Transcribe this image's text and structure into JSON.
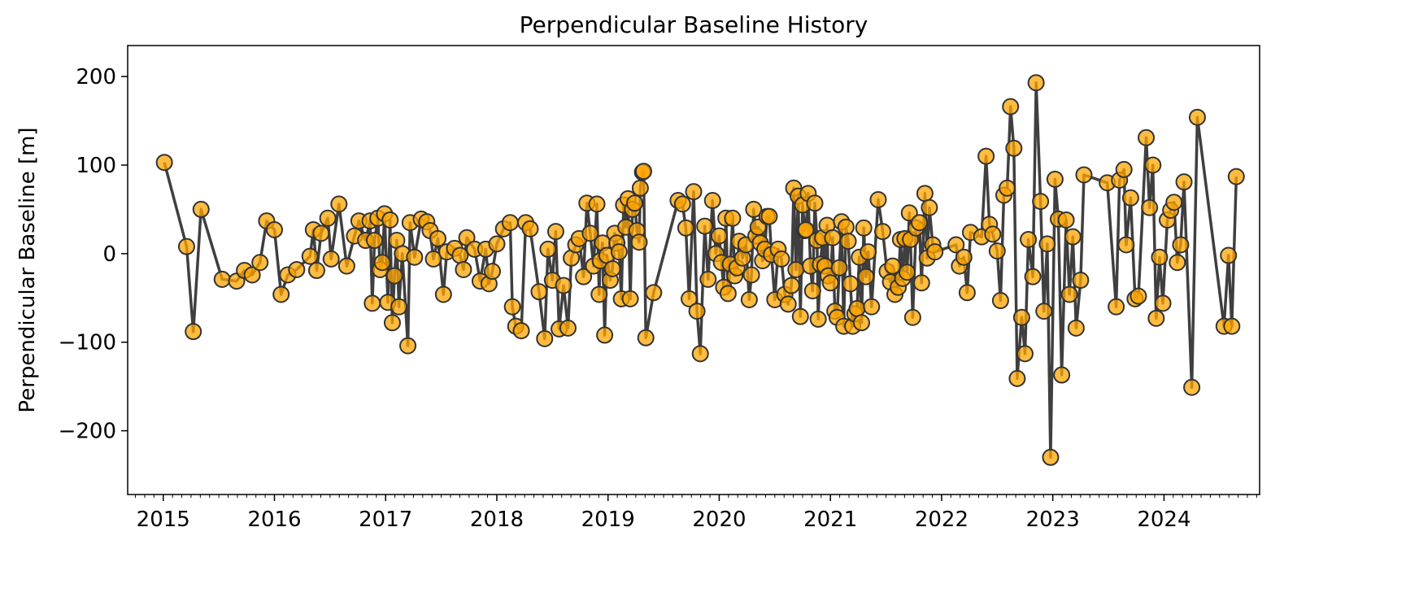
{
  "chart_data": {
    "type": "line",
    "title": "Perpendicular Baseline History",
    "ylabel": "Perpendicular Baseline [m]",
    "line_color": "#3f3f3f",
    "marker_color": "#ffa500",
    "marker_edge_color": "#333333",
    "xlim": [
      2014.68,
      2024.86
    ],
    "ylim": [
      -272,
      235
    ],
    "xticks": [
      2015,
      2016,
      2017,
      2018,
      2019,
      2020,
      2021,
      2022,
      2023,
      2024
    ],
    "yticks": [
      {
        "value": -200,
        "label": "−200"
      },
      {
        "value": -100,
        "label": "−100"
      },
      0,
      100,
      200
    ],
    "x": [
      2015.01,
      2015.21,
      2015.27,
      2015.34,
      2015.53,
      2015.66,
      2015.73,
      2015.8,
      2015.87,
      2015.93,
      2016.0,
      2016.06,
      2016.12,
      2016.2,
      2016.32,
      2016.35,
      2016.38,
      2016.42,
      2016.48,
      2016.51,
      2016.58,
      2016.65,
      2016.72,
      2016.76,
      2016.82,
      2016.86,
      2016.88,
      2016.9,
      2016.93,
      2016.95,
      2016.97,
      2016.99,
      2017.02,
      2017.04,
      2017.06,
      2017.08,
      2017.1,
      2017.12,
      2017.15,
      2017.2,
      2017.22,
      2017.26,
      2017.32,
      2017.37,
      2017.4,
      2017.43,
      2017.47,
      2017.52,
      2017.55,
      2017.62,
      2017.67,
      2017.7,
      2017.73,
      2017.8,
      2017.85,
      2017.9,
      2017.93,
      2017.96,
      2018.0,
      2018.06,
      2018.12,
      2018.14,
      2018.17,
      2018.22,
      2018.26,
      2018.3,
      2018.38,
      2018.43,
      2018.46,
      2018.5,
      2018.53,
      2018.56,
      2018.6,
      2018.64,
      2018.67,
      2018.71,
      2018.74,
      2018.78,
      2018.81,
      2018.84,
      2018.87,
      2018.9,
      2018.92,
      2018.93,
      2018.95,
      2018.97,
      2018.99,
      2019.02,
      2019.04,
      2019.06,
      2019.08,
      2019.1,
      2019.12,
      2019.14,
      2019.16,
      2019.18,
      2019.2,
      2019.22,
      2019.24,
      2019.26,
      2019.28,
      2019.29,
      2019.31,
      2019.32,
      2019.34,
      2019.41,
      2019.63,
      2019.67,
      2019.7,
      2019.73,
      2019.77,
      2019.8,
      2019.83,
      2019.87,
      2019.9,
      2019.94,
      2019.97,
      2020.0,
      2020.02,
      2020.04,
      2020.06,
      2020.08,
      2020.1,
      2020.12,
      2020.14,
      2020.16,
      2020.18,
      2020.21,
      2020.24,
      2020.27,
      2020.29,
      2020.31,
      2020.33,
      2020.35,
      2020.37,
      2020.39,
      2020.41,
      2020.43,
      2020.45,
      2020.47,
      2020.5,
      2020.53,
      2020.56,
      2020.59,
      2020.62,
      2020.65,
      2020.67,
      2020.69,
      2020.71,
      2020.73,
      2020.75,
      2020.77,
      2020.78,
      2020.8,
      2020.82,
      2020.84,
      2020.86,
      2020.88,
      2020.89,
      2020.91,
      2020.93,
      2020.95,
      2020.97,
      2020.98,
      2021.0,
      2021.02,
      2021.04,
      2021.06,
      2021.08,
      2021.1,
      2021.12,
      2021.14,
      2021.16,
      2021.18,
      2021.2,
      2021.22,
      2021.24,
      2021.26,
      2021.28,
      2021.3,
      2021.32,
      2021.34,
      2021.37,
      2021.43,
      2021.47,
      2021.51,
      2021.54,
      2021.56,
      2021.58,
      2021.61,
      2021.63,
      2021.65,
      2021.67,
      2021.69,
      2021.71,
      2021.72,
      2021.74,
      2021.77,
      2021.8,
      2021.82,
      2021.85,
      2021.87,
      2021.89,
      2021.92,
      2021.94,
      2022.13,
      2022.16,
      2022.2,
      2022.23,
      2022.26,
      2022.36,
      2022.4,
      2022.43,
      2022.46,
      2022.5,
      2022.53,
      2022.56,
      2022.59,
      2022.62,
      2022.65,
      2022.68,
      2022.72,
      2022.75,
      2022.78,
      2022.82,
      2022.85,
      2022.89,
      2022.92,
      2022.95,
      2022.98,
      2023.02,
      2023.05,
      2023.08,
      2023.12,
      2023.15,
      2023.18,
      2023.21,
      2023.25,
      2023.28,
      2023.49,
      2023.57,
      2023.6,
      2023.64,
      2023.66,
      2023.7,
      2023.74,
      2023.77,
      2023.84,
      2023.87,
      2023.9,
      2023.93,
      2023.96,
      2023.99,
      2024.03,
      2024.06,
      2024.09,
      2024.12,
      2024.15,
      2024.18,
      2024.25,
      2024.3,
      2024.54,
      2024.58,
      2024.61,
      2024.65
    ],
    "values": [
      103,
      8,
      -88,
      50,
      -29,
      -31,
      -19,
      -24,
      -10,
      37,
      27,
      -46,
      -24,
      -18,
      -3,
      27,
      -19,
      23,
      40,
      -6,
      56,
      -14,
      20,
      37,
      15,
      37,
      -56,
      15,
      40,
      -18,
      -10,
      45,
      -55,
      38,
      -78,
      -25,
      15,
      -60,
      0,
      -104,
      35,
      -4,
      39,
      36,
      26,
      -6,
      17,
      -46,
      2,
      6,
      -2,
      -18,
      18,
      5,
      -31,
      5,
      -34,
      -20,
      11,
      28,
      35,
      -60,
      -82,
      -87,
      35,
      28,
      -43,
      -96,
      5,
      -30,
      25,
      -85,
      -36,
      -84,
      -5,
      10,
      17,
      -26,
      57,
      23,
      -14,
      56,
      -46,
      -8,
      12,
      -92,
      -2,
      -30,
      -17,
      23,
      12,
      2,
      -51,
      55,
      30,
      62,
      -51,
      50,
      57,
      26,
      13,
      74,
      92,
      93,
      -95,
      -44,
      60,
      56,
      29,
      -51,
      70,
      -65,
      -113,
      31,
      -29,
      60,
      0,
      20,
      -10,
      -38,
      40,
      -45,
      -12,
      40,
      -25,
      -16,
      14,
      -5,
      10,
      -52,
      -24,
      50,
      20,
      30,
      12,
      -8,
      5,
      42,
      42,
      -1,
      -52,
      5,
      -6,
      -46,
      -57,
      -36,
      74,
      -18,
      65,
      -71,
      55,
      26,
      27,
      68,
      -14,
      -42,
      57,
      15,
      -74,
      -12,
      18,
      -14,
      32,
      -25,
      -33,
      18,
      -65,
      -72,
      -16,
      36,
      -82,
      30,
      14,
      -34,
      -82,
      -68,
      -62,
      -4,
      -78,
      29,
      -26,
      2,
      -60,
      61,
      25,
      -20,
      -32,
      -14,
      -46,
      -38,
      16,
      -28,
      17,
      -21,
      46,
      16,
      -72,
      29,
      35,
      -33,
      68,
      -5,
      52,
      10,
      2,
      10,
      -14,
      -4,
      -44,
      24,
      19,
      110,
      33,
      22,
      3,
      -53,
      66,
      74,
      166,
      119,
      -141,
      -72,
      -113,
      16,
      -26,
      193,
      59,
      -65,
      11,
      -230,
      84,
      39,
      -137,
      38,
      -46,
      19,
      -84,
      -30,
      89,
      80,
      -60,
      83,
      95,
      10,
      63,
      -51,
      -48,
      131,
      52,
      100,
      -73,
      -4,
      -56,
      38,
      49,
      58,
      -10,
      10,
      81,
      -151,
      154,
      -82,
      -2,
      -82,
      87
    ]
  }
}
